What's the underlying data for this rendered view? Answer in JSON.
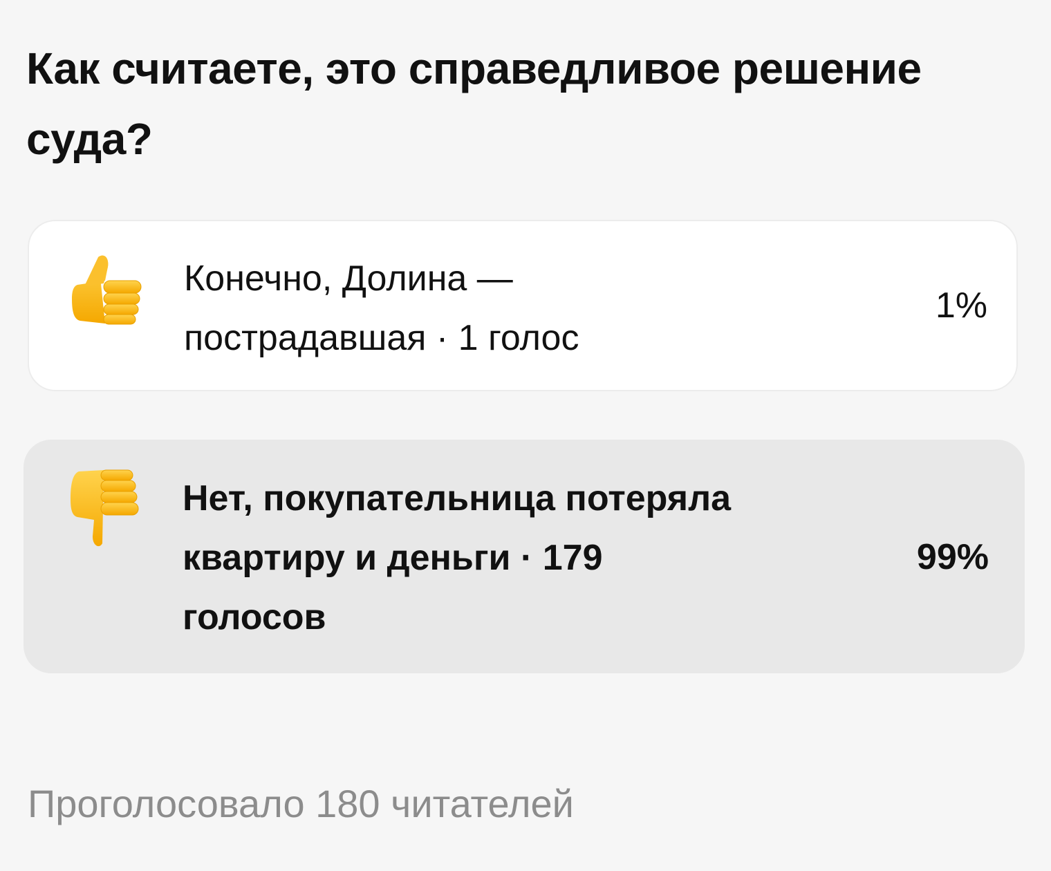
{
  "poll": {
    "question": "Как считаете, это справедливое решение суда?",
    "options": [
      {
        "icon": "thumbs-up-icon",
        "label": "Конечно, Долина — пострадавшая · 1 голос",
        "percent": "1%",
        "percent_value": 1,
        "selected": false
      },
      {
        "icon": "thumbs-down-icon",
        "label": "Нет, покупательница потеряла квартиру и деньги · 179 голосов",
        "percent": "99%",
        "percent_value": 99,
        "selected": true
      }
    ],
    "footer": "Проголосовало 180 читателей"
  },
  "colors": {
    "background": "#f6f6f6",
    "option_default": "#ffffff",
    "option_leading": "#e8e8e8",
    "emoji_yellow": "#fcc21b",
    "muted_text": "#8c8c8c"
  }
}
